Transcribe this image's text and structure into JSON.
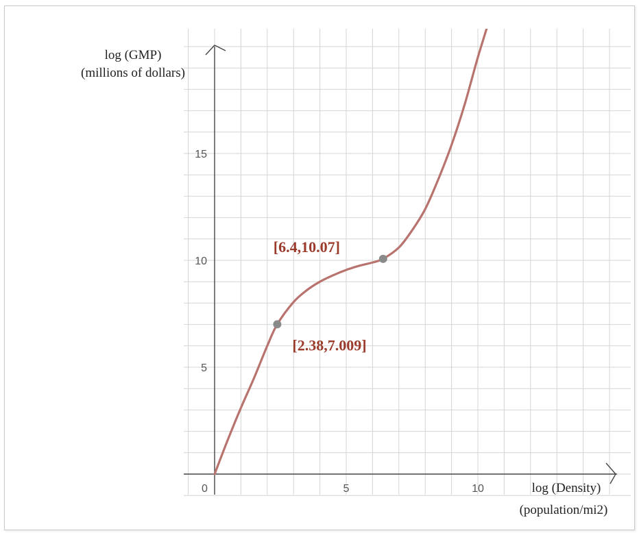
{
  "chart_data": {
    "type": "line",
    "xlabel": [
      "log (Density)",
      "(population/mi2)"
    ],
    "ylabel": [
      "log (GMP)",
      "(millions of dollars)"
    ],
    "xlim": [
      0,
      16
    ],
    "ylim": [
      0,
      20
    ],
    "x_ticks": [
      0,
      5,
      10
    ],
    "y_ticks": [
      5,
      10,
      15
    ],
    "origin_label": "0",
    "grid": true,
    "curve": {
      "x": [
        0,
        0.5,
        1,
        1.5,
        2,
        2.38,
        3,
        3.5,
        4,
        4.5,
        5,
        5.5,
        6,
        6.4,
        7,
        7.5,
        8,
        8.5,
        9,
        9.5,
        10,
        10.5
      ],
      "y": [
        0,
        1.6,
        3.1,
        4.5,
        6.0,
        7.009,
        8.05,
        8.6,
        9.0,
        9.3,
        9.55,
        9.75,
        9.9,
        10.07,
        10.6,
        11.4,
        12.4,
        13.8,
        15.4,
        17.3,
        19.5,
        21.5
      ]
    },
    "points": [
      {
        "x": 2.38,
        "y": 7.009,
        "label": "[2.38,7.009]"
      },
      {
        "x": 6.4,
        "y": 10.07,
        "label": "[6.4,10.07]"
      }
    ],
    "colors": {
      "curve": "#b8736e",
      "point": "#8a8a8a",
      "label": "#9b3b2c",
      "grid": "#d4d4d4",
      "axis": "#444444"
    }
  }
}
